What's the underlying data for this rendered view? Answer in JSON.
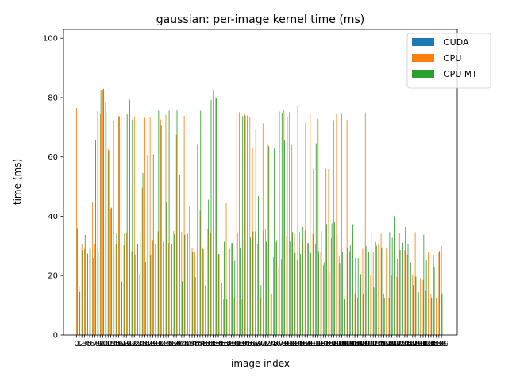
{
  "chart_data": {
    "type": "bar",
    "title": "gaussian: per-image kernel time (ms)",
    "xlabel": "image index",
    "ylabel": "time (ms)",
    "ylim": [
      0,
      103
    ],
    "yticks": [
      0,
      20,
      40,
      60,
      80,
      100
    ],
    "xlim": [
      -5,
      145
    ],
    "legend_position": "top-right",
    "series": [
      {
        "name": "CUDA",
        "color": "#1f77b4",
        "values": [
          0.1,
          0.1,
          0.1,
          0.1,
          0.1,
          0.1,
          0.1,
          0.1,
          0.1,
          0.1,
          0.1,
          0.1,
          0.1,
          0.1,
          0.1,
          0.1,
          0.1,
          0.1,
          0.1,
          0.1,
          0.1,
          0.1,
          0.1,
          0.1,
          0.1,
          0.1,
          0.1,
          0.1,
          0.1,
          0.1,
          0.1,
          0.1,
          0.1,
          0.1,
          0.1,
          0.1,
          0.1,
          0.1,
          0.1,
          0.1,
          0.1,
          0.1,
          0.1,
          0.1,
          0.1,
          0.1,
          0.1,
          0.1,
          0.1,
          0.1,
          0.1,
          0.1,
          0.1,
          0.1,
          0.1,
          0.1,
          0.1,
          0.1,
          0.1,
          0.1,
          0.1,
          0.1,
          0.1,
          0.1,
          0.1,
          0.1,
          0.1,
          0.1,
          0.1,
          0.1,
          0.1,
          0.1,
          0.1,
          0.1,
          0.1,
          0.1,
          0.1,
          0.1,
          0.1,
          0.1,
          0.1,
          0.1,
          0.1,
          0.1,
          0.1,
          0.1,
          0.1,
          0.1,
          0.1,
          0.1,
          0.1,
          0.1,
          0.1,
          0.1,
          0.1,
          0.1,
          0.1,
          0.1,
          0.1,
          0.1,
          0.1,
          0.1,
          0.1,
          0.1,
          0.1,
          0.1,
          0.1,
          0.1,
          0.1,
          0.1,
          0.1,
          0.1,
          0.1,
          0.1,
          0.1,
          0.1,
          0.1,
          0.1,
          0.1,
          0.1,
          0.1,
          0.1,
          0.1,
          0.1,
          0.1,
          0.1,
          0.1,
          0.1,
          0.1,
          0.1,
          0.1,
          0.1,
          0.1,
          0.1,
          0.1,
          0.1,
          0.1,
          0.1,
          0.1,
          0.1
        ]
      },
      {
        "name": "CPU",
        "color": "#ff7f0e",
        "values": [
          76.5,
          16.5,
          30.5,
          29.0,
          12.0,
          29.5,
          44.7,
          30.5,
          75.4,
          74.6,
          82.7,
          78.6,
          62.7,
          42.6,
          72.3,
          30.8,
          73.8,
          74.3,
          30.2,
          34.6,
          74.4,
          28.2,
          73.6,
          20.5,
          20.5,
          49.6,
          73.2,
          60.7,
          73.5,
          32.0,
          30.7,
          34.9,
          72.6,
          31.5,
          74.2,
          31.0,
          75.2,
          35.1,
          67.4,
          23.1,
          34.8,
          73.9,
          12.0,
          43.3,
          29.5,
          28.1,
          64.1,
          41.9,
          29.5,
          16.8,
          35.7,
          34.3,
          82.3,
          80.1,
          27.2,
          31.5,
          12.0,
          44.4,
          28.6,
          31.0,
          12.5,
          75.1,
          75.1,
          12.0,
          74.6,
          74.0,
          73.5,
          63.2,
          34.9,
          30.7,
          12.5,
          71.3,
          35.6,
          64.1,
          14.0,
          26.2,
          31.2,
          22.8,
          25.6,
          76.0,
          33.4,
          75.1,
          64.0,
          34.1,
          25.1,
          34.7,
          30.6,
          35.2,
          31.0,
          74.6,
          34.0,
          30.8,
          72.9,
          28.1,
          23.5,
          56.0,
          55.9,
          32.6,
          72.4,
          74.5,
          26.5,
          74.8,
          13.2,
          72.5,
          28.2,
          35.0,
          14.0,
          12.5,
          27.0,
          29.0,
          75.0,
          32.5,
          20.0,
          28.1,
          31.4,
          30.6,
          34.1,
          14.0,
          29.5,
          12.5,
          20.0,
          31.1,
          19.6,
          34.5,
          30.2,
          28.6,
          27.1,
          33.7,
          20.3,
          34.7,
          13.8,
          19.2,
          18.5,
          14.7,
          28.0,
          13.6,
          27.0,
          12.6,
          28.1,
          30.0
        ]
      },
      {
        "name": "CPU MT",
        "color": "#2ca02c",
        "values": [
          36.0,
          14.5,
          28.5,
          33.7,
          27.4,
          29.0,
          25.9,
          65.6,
          28.1,
          82.4,
          83.0,
          75.2,
          62.2,
          42.9,
          29.9,
          34.5,
          73.7,
          18.0,
          34.2,
          74.4,
          79.3,
          72.6,
          27.1,
          30.8,
          34.7,
          54.6,
          24.6,
          73.2,
          27.1,
          60.9,
          74.9,
          75.6,
          70.5,
          45.2,
          44.6,
          75.6,
          30.5,
          33.9,
          75.7,
          54.1,
          18.1,
          33.8,
          34.1,
          12.0,
          28.0,
          19.5,
          51.7,
          75.6,
          28.9,
          29.8,
          45.6,
          79.2,
          79.5,
          79.8,
          27.3,
          17.5,
          31.4,
          12.0,
          29.0,
          31.0,
          25.0,
          34.6,
          29.5,
          73.8,
          73.9,
          72.5,
          32.8,
          34.9,
          69.3,
          46.8,
          16.8,
          35.0,
          31.4,
          63.5,
          14.0,
          62.8,
          32.0,
          75.3,
          74.9,
          65.5,
          73.7,
          31.5,
          34.7,
          27.6,
          77.1,
          27.3,
          36.4,
          71.6,
          31.0,
          27.6,
          55.9,
          64.6,
          28.2,
          35.0,
          24.5,
          37.4,
          21.0,
          37.6,
          38.0,
          33.7,
          24.3,
          28.0,
          12.0,
          29.3,
          30.2,
          37.3,
          26.1,
          25.9,
          20.5,
          14.0,
          30.0,
          28.0,
          34.8,
          16.0,
          30.1,
          32.1,
          29.5,
          12.5,
          75.0,
          34.7,
          32.8,
          40.0,
          25.7,
          28.6,
          31.1,
          36.4,
          30.7,
          24.5,
          16.8,
          19.7,
          14.5,
          35.0,
          33.8,
          25.1,
          28.6,
          12.5,
          22.8,
          26.1,
          28.3,
          14.0
        ]
      }
    ]
  }
}
